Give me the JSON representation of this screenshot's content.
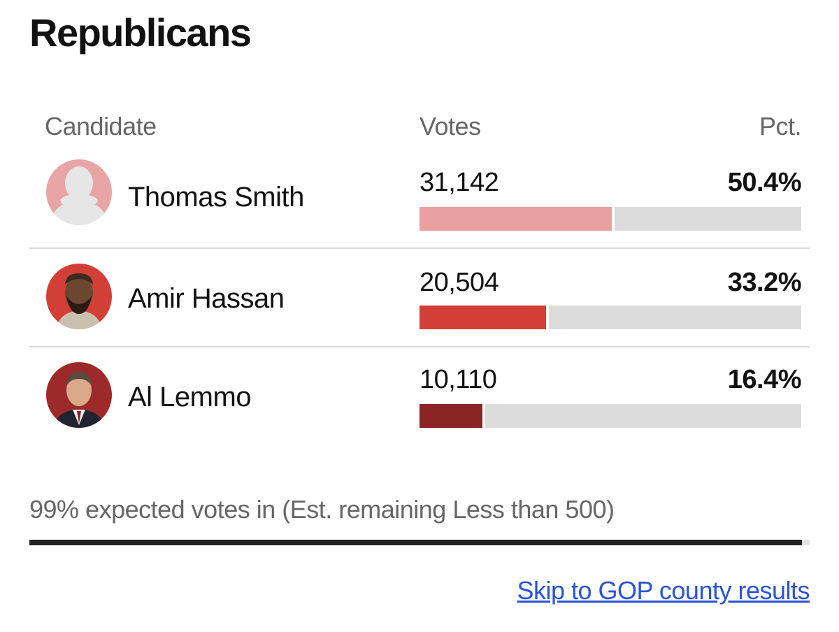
{
  "party_title": "Republicans",
  "columns": {
    "candidate": "Candidate",
    "votes": "Votes",
    "pct": "Pct."
  },
  "candidates": [
    {
      "name": "Thomas Smith",
      "votes": "31,142",
      "pct": "50.4%",
      "share": 0.504,
      "bar_color": "#e8a0a0",
      "avatar": "placeholder-avatar-icon"
    },
    {
      "name": "Amir Hassan",
      "votes": "20,504",
      "pct": "33.2%",
      "share": 0.332,
      "bar_color": "#d23f36",
      "avatar": "candidate-photo"
    },
    {
      "name": "Al Lemmo",
      "votes": "10,110",
      "pct": "16.4%",
      "share": 0.164,
      "bar_color": "#8a2523",
      "avatar": "candidate-photo"
    }
  ],
  "reporting": {
    "text": "99% expected votes in (Est. remaining Less than 500)",
    "progress": 0.99
  },
  "skip_link": "Skip to GOP county results",
  "colors": {
    "link": "#2a53d6",
    "bar_track": "#dcdcdc"
  }
}
